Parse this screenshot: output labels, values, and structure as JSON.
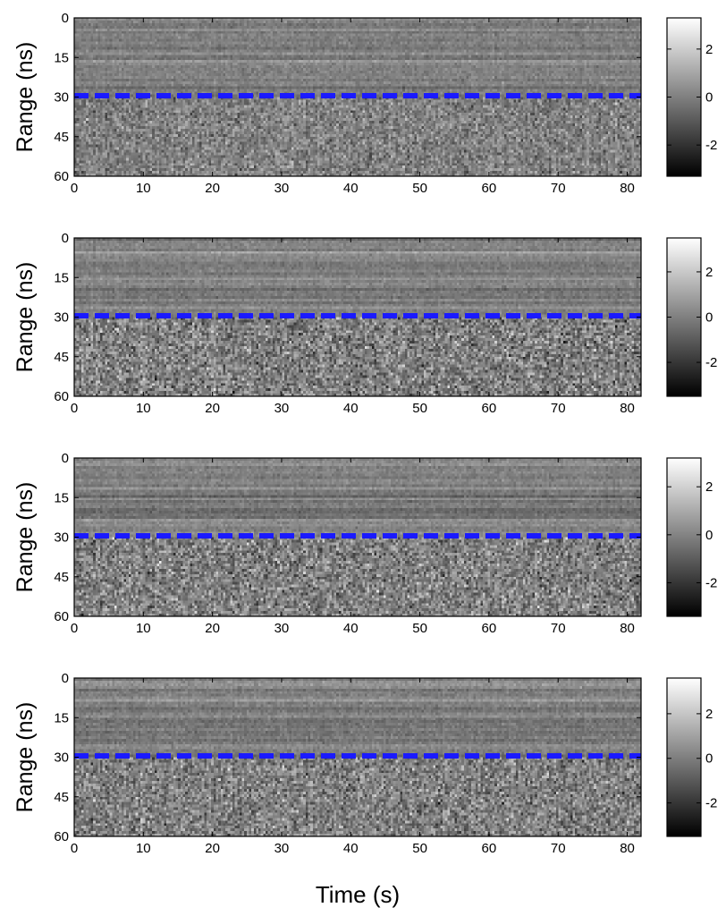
{
  "figure": {
    "xlabel": "Time (s)"
  },
  "chart_data": [
    {
      "type": "heatmap",
      "xlabel": "",
      "ylabel": "Range (ns)",
      "xlim": [
        0,
        82
      ],
      "ylim": [
        0,
        60
      ],
      "y_reversed": true,
      "xticks": [
        0,
        10,
        20,
        30,
        40,
        50,
        60,
        70,
        80
      ],
      "yticks": [
        0,
        15,
        30,
        45,
        60
      ],
      "colormap": "gray",
      "colorbar": {
        "range": [
          -3.3,
          3.3
        ],
        "ticks": [
          2,
          0,
          -2
        ]
      },
      "reference_line": {
        "y": 29.5,
        "style": "dashed",
        "color": "#1a1aff"
      },
      "texture": {
        "upper_noise": 0.55,
        "lower_noise": 1.0,
        "seed": 11
      }
    },
    {
      "type": "heatmap",
      "xlabel": "",
      "ylabel": "Range (ns)",
      "xlim": [
        0,
        82
      ],
      "ylim": [
        0,
        60
      ],
      "y_reversed": true,
      "xticks": [
        0,
        10,
        20,
        30,
        40,
        50,
        60,
        70,
        80
      ],
      "yticks": [
        0,
        15,
        30,
        45,
        60
      ],
      "colormap": "gray",
      "colorbar": {
        "range": [
          -3.5,
          3.5
        ],
        "ticks": [
          2,
          0,
          -2
        ]
      },
      "reference_line": {
        "y": 29.5,
        "style": "dashed",
        "color": "#1a1aff"
      },
      "texture": {
        "upper_noise": 0.5,
        "lower_noise": 1.35,
        "seed": 23
      }
    },
    {
      "type": "heatmap",
      "xlabel": "",
      "ylabel": "Range (ns)",
      "xlim": [
        0,
        82
      ],
      "ylim": [
        0,
        60
      ],
      "y_reversed": true,
      "xticks": [
        0,
        10,
        20,
        30,
        40,
        50,
        60,
        70,
        80
      ],
      "yticks": [
        0,
        15,
        30,
        45,
        60
      ],
      "colormap": "gray",
      "colorbar": {
        "range": [
          -3.4,
          3.2
        ],
        "ticks": [
          2,
          0,
          -2
        ]
      },
      "reference_line": {
        "y": 29.5,
        "style": "dashed",
        "color": "#1a1aff"
      },
      "texture": {
        "upper_noise": 0.5,
        "lower_noise": 1.3,
        "seed": 37
      }
    },
    {
      "type": "heatmap",
      "xlabel": "",
      "ylabel": "Range (ns)",
      "xlim": [
        0,
        82
      ],
      "ylim": [
        0,
        60
      ],
      "y_reversed": true,
      "xticks": [
        0,
        10,
        20,
        30,
        40,
        50,
        60,
        70,
        80
      ],
      "yticks": [
        0,
        15,
        30,
        45,
        60
      ],
      "colormap": "gray",
      "colorbar": {
        "range": [
          -3.5,
          3.6
        ],
        "ticks": [
          2,
          0,
          -2
        ]
      },
      "reference_line": {
        "y": 29.5,
        "style": "dashed",
        "color": "#1a1aff"
      },
      "texture": {
        "upper_noise": 0.55,
        "lower_noise": 1.25,
        "seed": 53
      }
    }
  ]
}
